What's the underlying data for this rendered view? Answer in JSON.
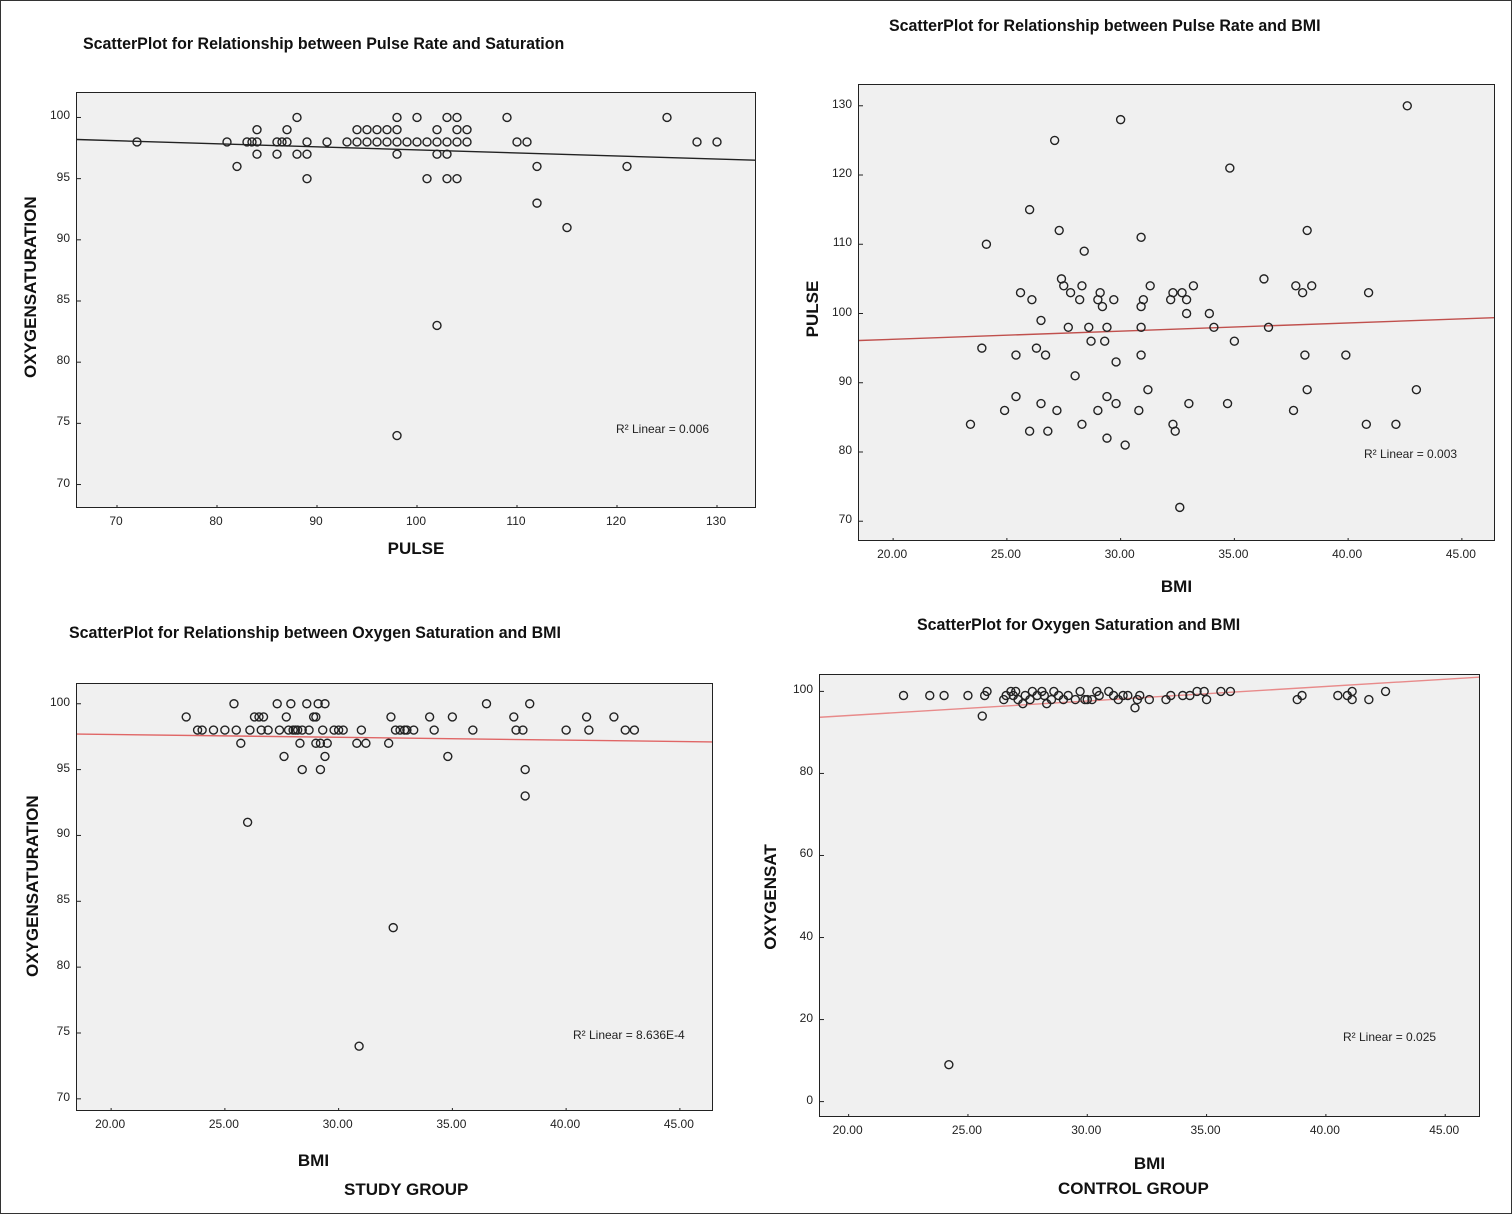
{
  "chart_data": [
    {
      "type": "scatter",
      "title": "ScatterPlot for Relationship between Pulse Rate and Saturation",
      "xlabel": "PULSE",
      "ylabel": "OXYGENSATURATION",
      "group_label": "",
      "xlim": [
        66,
        134
      ],
      "ylim": [
        68,
        102
      ],
      "xticks": [
        70,
        80,
        90,
        100,
        110,
        120,
        130
      ],
      "yticks": [
        70,
        75,
        80,
        85,
        90,
        95,
        100
      ],
      "xtick_labels": [
        "70",
        "80",
        "90",
        "100",
        "110",
        "120",
        "130"
      ],
      "ytick_labels": [
        "70",
        "75",
        "80",
        "85",
        "90",
        "95",
        "100"
      ],
      "grid": false,
      "fit_line": {
        "x": [
          66,
          134
        ],
        "y": [
          98.2,
          96.5
        ],
        "color": "#222222"
      },
      "r2_label": "R² Linear = 0.006",
      "points": [
        [
          72,
          98
        ],
        [
          81,
          98
        ],
        [
          82,
          96
        ],
        [
          83,
          98
        ],
        [
          83.5,
          98
        ],
        [
          84,
          99
        ],
        [
          84,
          98
        ],
        [
          84,
          97
        ],
        [
          86,
          98
        ],
        [
          86,
          97
        ],
        [
          86.5,
          98
        ],
        [
          87,
          99
        ],
        [
          87,
          98
        ],
        [
          88,
          100
        ],
        [
          88,
          97
        ],
        [
          89,
          98
        ],
        [
          89,
          97
        ],
        [
          89,
          95
        ],
        [
          91,
          98
        ],
        [
          93,
          98
        ],
        [
          94,
          99
        ],
        [
          94,
          98
        ],
        [
          95,
          99
        ],
        [
          95,
          98
        ],
        [
          96,
          99
        ],
        [
          96,
          98
        ],
        [
          97,
          99
        ],
        [
          97,
          98
        ],
        [
          98,
          100
        ],
        [
          98,
          99
        ],
        [
          98,
          98
        ],
        [
          98,
          97
        ],
        [
          99,
          98
        ],
        [
          100,
          100
        ],
        [
          100,
          98
        ],
        [
          101,
          98
        ],
        [
          101,
          95
        ],
        [
          102,
          99
        ],
        [
          102,
          98
        ],
        [
          102,
          97
        ],
        [
          102,
          83
        ],
        [
          103,
          98
        ],
        [
          103,
          97
        ],
        [
          103,
          95
        ],
        [
          103,
          100
        ],
        [
          104,
          100
        ],
        [
          104,
          99
        ],
        [
          104,
          98
        ],
        [
          104,
          95
        ],
        [
          105,
          99
        ],
        [
          105,
          98
        ],
        [
          98,
          74
        ],
        [
          109,
          100
        ],
        [
          110,
          98
        ],
        [
          111,
          98
        ],
        [
          112,
          96
        ],
        [
          112,
          93
        ],
        [
          115,
          91
        ],
        [
          121,
          96
        ],
        [
          125,
          100
        ],
        [
          128,
          98
        ],
        [
          130,
          98
        ]
      ]
    },
    {
      "type": "scatter",
      "title": "ScatterPlot for Relationship between Pulse Rate and BMI",
      "xlabel": "BMI",
      "ylabel": "PULSE",
      "group_label": "",
      "xlim": [
        18.5,
        46.5
      ],
      "ylim": [
        67,
        133
      ],
      "xticks": [
        20,
        25,
        30,
        35,
        40,
        45
      ],
      "yticks": [
        70,
        80,
        90,
        100,
        110,
        120,
        130
      ],
      "xtick_labels": [
        "20.00",
        "25.00",
        "30.00",
        "35.00",
        "40.00",
        "45.00"
      ],
      "ytick_labels": [
        "70",
        "80",
        "90",
        "100",
        "110",
        "120",
        "130"
      ],
      "grid": false,
      "fit_line": {
        "x": [
          18.5,
          46.5
        ],
        "y": [
          96.1,
          99.4
        ],
        "color": "#c0504d"
      },
      "r2_label": "R² Linear = 0.003",
      "points": [
        [
          23.4,
          84
        ],
        [
          23.9,
          95
        ],
        [
          24.1,
          110
        ],
        [
          24.9,
          86
        ],
        [
          25.4,
          94
        ],
        [
          25.4,
          88
        ],
        [
          25.6,
          103
        ],
        [
          26,
          115
        ],
        [
          26,
          83
        ],
        [
          26.1,
          102
        ],
        [
          26.3,
          95
        ],
        [
          26.5,
          87
        ],
        [
          26.5,
          99
        ],
        [
          26.7,
          94
        ],
        [
          26.8,
          83
        ],
        [
          27.1,
          125
        ],
        [
          27.2,
          86
        ],
        [
          27.3,
          112
        ],
        [
          27.4,
          105
        ],
        [
          27.5,
          104
        ],
        [
          27.7,
          98
        ],
        [
          27.8,
          103
        ],
        [
          28,
          91
        ],
        [
          28.2,
          102
        ],
        [
          28.3,
          104
        ],
        [
          28.3,
          84
        ],
        [
          28.4,
          109
        ],
        [
          28.6,
          98
        ],
        [
          28.7,
          96
        ],
        [
          29,
          102
        ],
        [
          29,
          86
        ],
        [
          29.1,
          103
        ],
        [
          29.2,
          101
        ],
        [
          29.3,
          96
        ],
        [
          29.4,
          88
        ],
        [
          29.4,
          98
        ],
        [
          29.4,
          82
        ],
        [
          29.7,
          102
        ],
        [
          29.8,
          93
        ],
        [
          29.8,
          87
        ],
        [
          30,
          128
        ],
        [
          30.2,
          81
        ],
        [
          30.8,
          86
        ],
        [
          30.9,
          111
        ],
        [
          30.9,
          101
        ],
        [
          30.9,
          94
        ],
        [
          30.9,
          98
        ],
        [
          31,
          102
        ],
        [
          31.2,
          89
        ],
        [
          31.3,
          104
        ],
        [
          32.2,
          102
        ],
        [
          32.3,
          103
        ],
        [
          32.3,
          84
        ],
        [
          32.4,
          83
        ],
        [
          32.6,
          72
        ],
        [
          32.7,
          103
        ],
        [
          32.9,
          102
        ],
        [
          32.9,
          100
        ],
        [
          33,
          87
        ],
        [
          33.2,
          104
        ],
        [
          33.9,
          100
        ],
        [
          34.1,
          98
        ],
        [
          34.7,
          87
        ],
        [
          34.8,
          121
        ],
        [
          35,
          96
        ],
        [
          36.3,
          105
        ],
        [
          36.5,
          98
        ],
        [
          37.6,
          86
        ],
        [
          37.7,
          104
        ],
        [
          38,
          103
        ],
        [
          38.1,
          94
        ],
        [
          38.2,
          89
        ],
        [
          38.2,
          112
        ],
        [
          38.4,
          104
        ],
        [
          39.9,
          94
        ],
        [
          40.8,
          84
        ],
        [
          40.9,
          103
        ],
        [
          42.1,
          84
        ],
        [
          42.6,
          130
        ],
        [
          43,
          89
        ]
      ]
    },
    {
      "type": "scatter",
      "title": "ScatterPlot for Relationship between Oxygen Saturation and BMI",
      "xlabel": "BMI",
      "ylabel": "OXYGENSATURATION",
      "group_label": "STUDY GROUP",
      "xlim": [
        18.5,
        46.5
      ],
      "ylim": [
        69,
        101.5
      ],
      "xticks": [
        20,
        25,
        30,
        35,
        40,
        45
      ],
      "yticks": [
        70,
        75,
        80,
        85,
        90,
        95,
        100
      ],
      "xtick_labels": [
        "20.00",
        "25.00",
        "30.00",
        "35.00",
        "40.00",
        "45.00"
      ],
      "ytick_labels": [
        "70",
        "75",
        "80",
        "85",
        "90",
        "95",
        "100"
      ],
      "grid": false,
      "fit_line": {
        "x": [
          18.5,
          46.5
        ],
        "y": [
          97.7,
          97.1
        ],
        "color": "#e06666"
      },
      "r2_label": "R² Linear = 8.636E-4",
      "points": [
        [
          23.3,
          99
        ],
        [
          23.8,
          98
        ],
        [
          24,
          98
        ],
        [
          24.5,
          98
        ],
        [
          25,
          98
        ],
        [
          25.4,
          100
        ],
        [
          25.5,
          98
        ],
        [
          25.7,
          97
        ],
        [
          26,
          91
        ],
        [
          26.1,
          98
        ],
        [
          26.3,
          99
        ],
        [
          26.5,
          99
        ],
        [
          26.6,
          98
        ],
        [
          26.7,
          99
        ],
        [
          26.9,
          98
        ],
        [
          27.3,
          100
        ],
        [
          27.4,
          98
        ],
        [
          27.6,
          96
        ],
        [
          27.7,
          99
        ],
        [
          27.8,
          98
        ],
        [
          27.9,
          100
        ],
        [
          28,
          98
        ],
        [
          28.1,
          98
        ],
        [
          28.2,
          98
        ],
        [
          28.3,
          97
        ],
        [
          28.4,
          95
        ],
        [
          28.4,
          98
        ],
        [
          28.6,
          100
        ],
        [
          28.7,
          98
        ],
        [
          28.9,
          99
        ],
        [
          29,
          99
        ],
        [
          29,
          97
        ],
        [
          29.1,
          100
        ],
        [
          29.2,
          97
        ],
        [
          29.2,
          95
        ],
        [
          29.3,
          98
        ],
        [
          29.4,
          96
        ],
        [
          29.4,
          100
        ],
        [
          29.5,
          97
        ],
        [
          29.8,
          98
        ],
        [
          30,
          98
        ],
        [
          30.2,
          98
        ],
        [
          30.8,
          97
        ],
        [
          30.9,
          74
        ],
        [
          31,
          98
        ],
        [
          31.2,
          97
        ],
        [
          32.2,
          97
        ],
        [
          32.3,
          99
        ],
        [
          32.4,
          83
        ],
        [
          32.5,
          98
        ],
        [
          32.7,
          98
        ],
        [
          32.9,
          98
        ],
        [
          33,
          98
        ],
        [
          33.3,
          98
        ],
        [
          34,
          99
        ],
        [
          34.2,
          98
        ],
        [
          34.8,
          96
        ],
        [
          35,
          99
        ],
        [
          35.9,
          98
        ],
        [
          36.5,
          100
        ],
        [
          37.7,
          99
        ],
        [
          37.8,
          98
        ],
        [
          38.1,
          98
        ],
        [
          38.2,
          95
        ],
        [
          38.2,
          93
        ],
        [
          38.4,
          100
        ],
        [
          40,
          98
        ],
        [
          40.9,
          99
        ],
        [
          41,
          98
        ],
        [
          42.1,
          99
        ],
        [
          42.6,
          98
        ],
        [
          43,
          98
        ]
      ]
    },
    {
      "type": "scatter",
      "title": "ScatterPlot for Oxygen Saturation and BMI",
      "xlabel": "BMI",
      "ylabel": "OXYGENSAT",
      "group_label": "CONTROL GROUP",
      "xlim": [
        18.8,
        46.5
      ],
      "ylim": [
        -4,
        104
      ],
      "xticks": [
        20,
        25,
        30,
        35,
        40,
        45
      ],
      "yticks": [
        0,
        20,
        40,
        60,
        80,
        100
      ],
      "xtick_labels": [
        "20.00",
        "25.00",
        "30.00",
        "35.00",
        "40.00",
        "45.00"
      ],
      "ytick_labels": [
        "0",
        "20",
        "40",
        "60",
        "80",
        "100"
      ],
      "grid": false,
      "fit_line": {
        "x": [
          18.8,
          46.5
        ],
        "y": [
          93.7,
          103.5
        ],
        "color": "#e88a8a"
      },
      "r2_label": "R² Linear = 0.025",
      "points": [
        [
          22.3,
          99
        ],
        [
          23.4,
          99
        ],
        [
          24,
          99
        ],
        [
          24.2,
          9
        ],
        [
          25,
          99
        ],
        [
          25.6,
          94
        ],
        [
          25.7,
          99
        ],
        [
          25.8,
          100
        ],
        [
          26.5,
          98
        ],
        [
          26.6,
          99
        ],
        [
          26.8,
          100
        ],
        [
          26.9,
          99
        ],
        [
          27,
          100
        ],
        [
          27.1,
          98
        ],
        [
          27.3,
          97
        ],
        [
          27.4,
          99
        ],
        [
          27.6,
          98
        ],
        [
          27.7,
          100
        ],
        [
          27.9,
          99
        ],
        [
          28.1,
          100
        ],
        [
          28.2,
          99
        ],
        [
          28.3,
          97
        ],
        [
          28.5,
          98
        ],
        [
          28.6,
          100
        ],
        [
          28.8,
          99
        ],
        [
          29,
          98
        ],
        [
          29.2,
          99
        ],
        [
          29.5,
          98
        ],
        [
          29.7,
          100
        ],
        [
          29.9,
          98
        ],
        [
          30,
          98
        ],
        [
          30.2,
          98
        ],
        [
          30.4,
          100
        ],
        [
          30.5,
          99
        ],
        [
          30.9,
          100
        ],
        [
          31.1,
          99
        ],
        [
          31.3,
          98
        ],
        [
          31.5,
          99
        ],
        [
          31.7,
          99
        ],
        [
          32,
          96
        ],
        [
          32.1,
          98
        ],
        [
          32.2,
          99
        ],
        [
          32.6,
          98
        ],
        [
          33.3,
          98
        ],
        [
          33.5,
          99
        ],
        [
          34,
          99
        ],
        [
          34.3,
          99
        ],
        [
          34.6,
          100
        ],
        [
          34.9,
          100
        ],
        [
          35,
          98
        ],
        [
          35.6,
          100
        ],
        [
          36,
          100
        ],
        [
          38.8,
          98
        ],
        [
          39,
          99
        ],
        [
          40.5,
          99
        ],
        [
          40.9,
          99
        ],
        [
          41.1,
          100
        ],
        [
          41.1,
          98
        ],
        [
          41.8,
          98
        ],
        [
          42.5,
          100
        ]
      ]
    }
  ]
}
